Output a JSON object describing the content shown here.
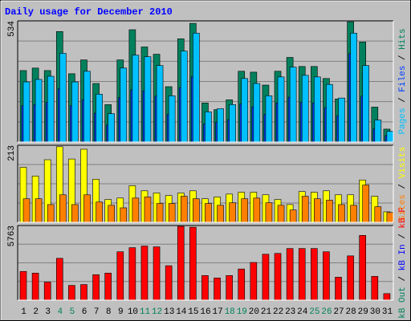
{
  "chart_data": [
    {
      "type": "bar",
      "title": "Daily usage for December 2010",
      "legend_separator": " / ",
      "ylim": [
        0,
        534
      ],
      "yticks": [
        534
      ],
      "grid": true,
      "series": [
        {
          "name": "Hits",
          "color": "#00805c",
          "values": [
            315,
            326,
            315,
            487,
            301,
            362,
            258,
            165,
            362,
            495,
            419,
            387,
            244,
            455,
            523,
            172,
            143,
            186,
            312,
            308,
            251,
            312,
            373,
            333,
            333,
            280,
            190,
            530,
            441,
            154,
            57
          ]
        },
        {
          "name": "Files",
          "color": "#0040ff",
          "values": [
            160,
            165,
            175,
            235,
            160,
            187,
            127,
            75,
            196,
            230,
            225,
            202,
            122,
            240,
            288,
            80,
            88,
            99,
            168,
            155,
            122,
            172,
            198,
            176,
            172,
            152,
            116,
            390,
            202,
            58,
            28
          ]
        },
        {
          "name": "Pages",
          "color": "#00c0ff",
          "values": [
            265,
            276,
            290,
            391,
            265,
            312,
            211,
            125,
            326,
            383,
            376,
            337,
            204,
            401,
            480,
            133,
            147,
            165,
            280,
            258,
            204,
            287,
            330,
            294,
            287,
            254,
            194,
            480,
            337,
            97,
            47
          ]
        }
      ]
    },
    {
      "type": "bar",
      "ylim": [
        0,
        213
      ],
      "yticks": [
        213
      ],
      "grid": true,
      "series": [
        {
          "name": "Visits",
          "color": "#ffff00",
          "values": [
            152,
            128,
            173,
            209,
            175,
            202,
            119,
            63,
            67,
            101,
            87,
            81,
            74,
            81,
            87,
            65,
            70,
            78,
            83,
            83,
            76,
            63,
            49,
            85,
            83,
            87,
            76,
            76,
            117,
            72,
            29
          ]
        },
        {
          "name": "Sites",
          "color": "#ff8000",
          "values": [
            65,
            65,
            49,
            76,
            49,
            76,
            56,
            47,
            40,
            67,
            70,
            52,
            52,
            72,
            65,
            52,
            47,
            54,
            65,
            67,
            54,
            47,
            34,
            72,
            65,
            61,
            49,
            47,
            103,
            43,
            27
          ]
        }
      ]
    },
    {
      "type": "bar",
      "ylim": [
        0,
        5763
      ],
      "yticks": [
        5763
      ],
      "grid": true,
      "categories": [
        "1",
        "2",
        "3",
        "4",
        "5",
        "6",
        "7",
        "8",
        "9",
        "10",
        "11",
        "12",
        "13",
        "14",
        "15",
        "16",
        "17",
        "18",
        "19",
        "20",
        "21",
        "22",
        "23",
        "24",
        "25",
        "26",
        "27",
        "28",
        "29",
        "30",
        "31"
      ],
      "category_colors": [
        "#000000",
        "#000000",
        "#000000",
        "#00805c",
        "#00805c",
        "#000000",
        "#000000",
        "#000000",
        "#000000",
        "#000000",
        "#00805c",
        "#00805c",
        "#000000",
        "#000000",
        "#000000",
        "#000000",
        "#000000",
        "#00805c",
        "#00805c",
        "#000000",
        "#000000",
        "#000000",
        "#000000",
        "#000000",
        "#00805c",
        "#00805c",
        "#000000",
        "#000000",
        "#000000",
        "#000000",
        "#000000"
      ],
      "series": [
        {
          "name": "kB F",
          "color": "#ff0000",
          "values": [
            2216,
            2089,
            1393,
            3229,
            1140,
            1203,
            1963,
            2089,
            3735,
            4052,
            4178,
            4115,
            2659,
            5697,
            5634,
            1899,
            1709,
            1899,
            2405,
            2912,
            3545,
            3608,
            3988,
            3988,
            3988,
            3735,
            1772,
            3418,
            5001,
            1836,
            506
          ]
        },
        {
          "name": "kB In",
          "color": "#0000ff"
        },
        {
          "name": "kB Out",
          "color": "#00805c"
        }
      ]
    }
  ]
}
